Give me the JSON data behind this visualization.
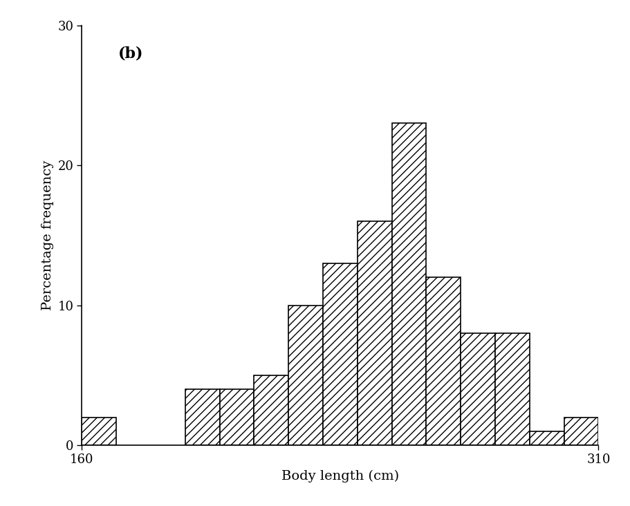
{
  "bin_edges": [
    160,
    170,
    180,
    190,
    200,
    210,
    220,
    230,
    240,
    250,
    260,
    270,
    280,
    290,
    300,
    310
  ],
  "frequencies": [
    2,
    0,
    0,
    4,
    4,
    5,
    10,
    13,
    16,
    23,
    12,
    8,
    8,
    1,
    2
  ],
  "xlabel": "Body length (cm)",
  "ylabel": "Percentage frequency",
  "annotation": "(b)",
  "xlim": [
    160,
    310
  ],
  "ylim": [
    0,
    30
  ],
  "yticks": [
    0,
    10,
    20,
    30
  ],
  "xticks": [
    160,
    310
  ],
  "hatch_pattern": "///",
  "bar_facecolor": "white",
  "bar_edgecolor": "black",
  "background_color": "white",
  "label_fontsize": 14,
  "tick_fontsize": 13,
  "annotation_fontsize": 16,
  "linewidth": 1.2
}
